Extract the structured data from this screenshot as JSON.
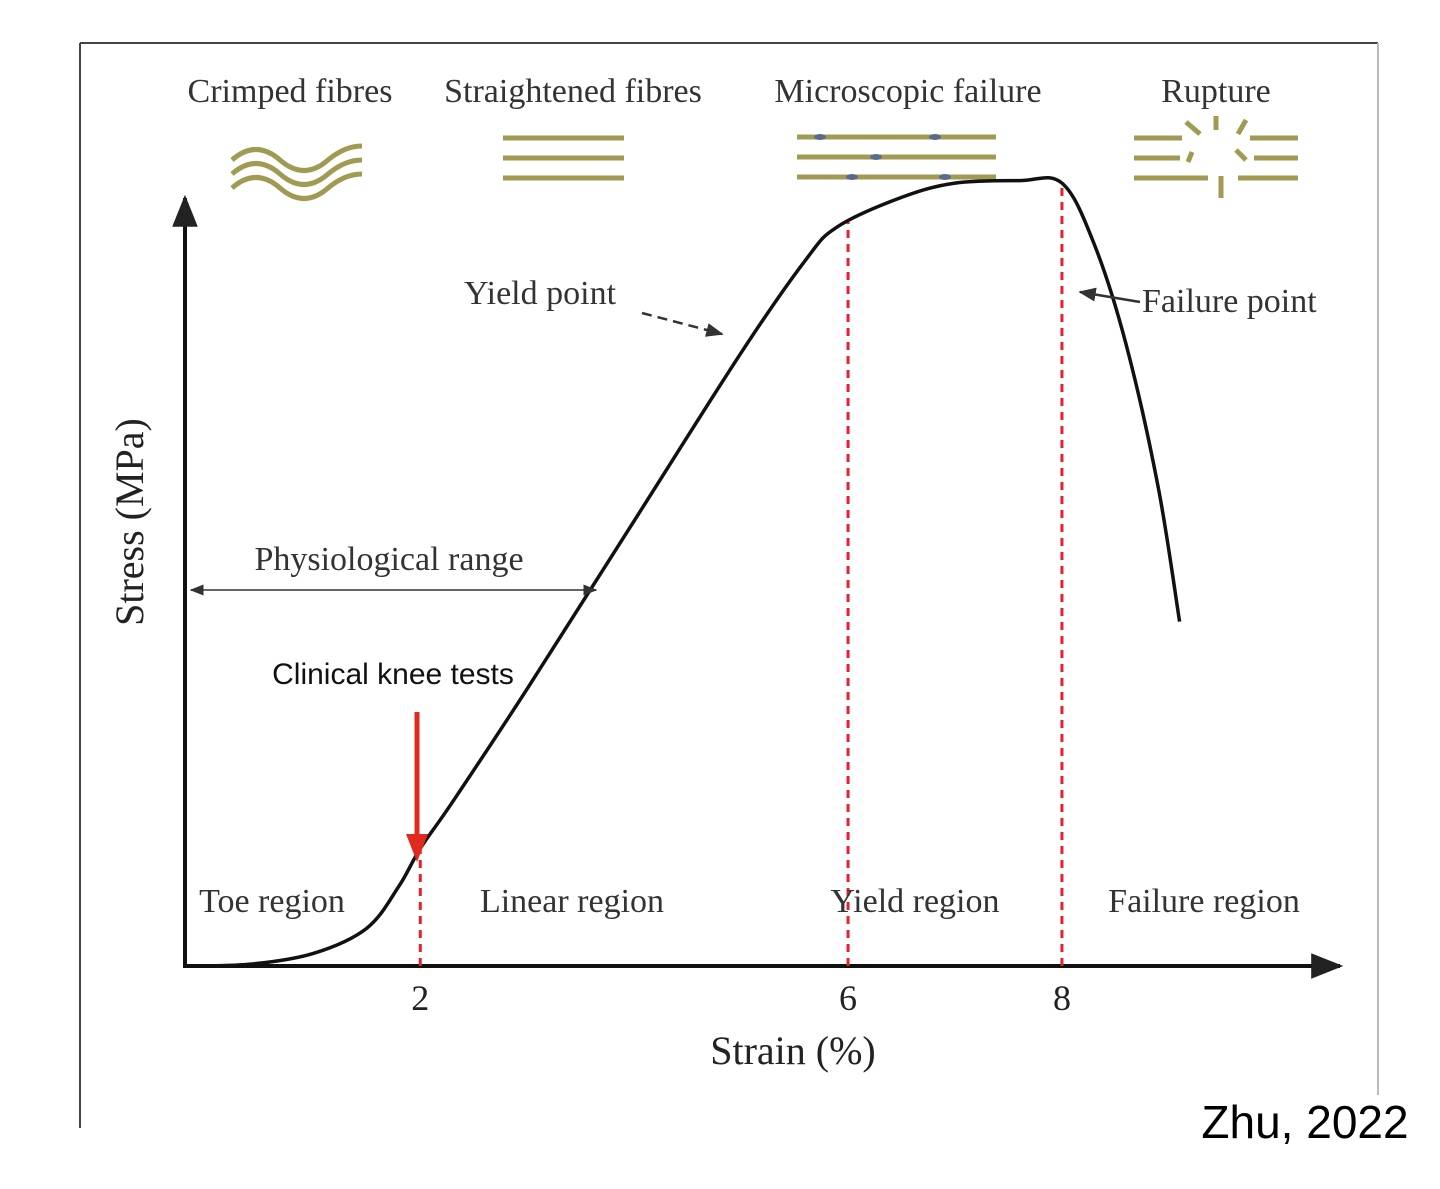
{
  "chart_data": {
    "type": "line",
    "xlabel": "Strain (%)",
    "ylabel": "Stress (MPa)",
    "x_ticks": [
      "2",
      "6",
      "8"
    ],
    "x_tick_values": [
      2,
      6,
      8
    ],
    "xlim": [
      -0.2,
      10.6
    ],
    "ylim": [
      0,
      10
    ],
    "grid": false,
    "series": [
      {
        "x": [
          -0.2,
          0.4,
          1.0,
          1.5,
          1.8,
          2.0,
          2.3,
          3.0,
          4.0,
          5.0,
          5.6,
          5.9,
          6.5,
          7.0,
          7.6,
          8.0,
          8.3,
          8.6,
          8.9,
          9.1
        ],
        "values": [
          0.0,
          0.02,
          0.15,
          0.45,
          0.95,
          1.4,
          1.95,
          3.3,
          5.3,
          7.3,
          8.4,
          8.8,
          9.15,
          9.32,
          9.35,
          9.32,
          8.6,
          7.4,
          5.7,
          4.1
        ]
      }
    ],
    "region_boundaries": [
      2,
      6,
      8
    ],
    "regions": [
      "Toe region",
      "Linear region",
      "Yield region",
      "Failure region"
    ],
    "fibre_states": [
      "Crimped fibres",
      "Straightened fibres",
      "Microscopic failure",
      "Rupture"
    ],
    "annotations": {
      "yield_point": "Yield point",
      "failure_point": "Failure point",
      "physiological_range": "Physiological range",
      "clinical_knee_tests": "Clinical knee tests"
    },
    "colors": {
      "curve": "#111111",
      "boundary": "#e8202a",
      "fibre": "#a09a52",
      "arrow_red": "#e02a1e"
    }
  },
  "citation": "Zhu, 2022"
}
